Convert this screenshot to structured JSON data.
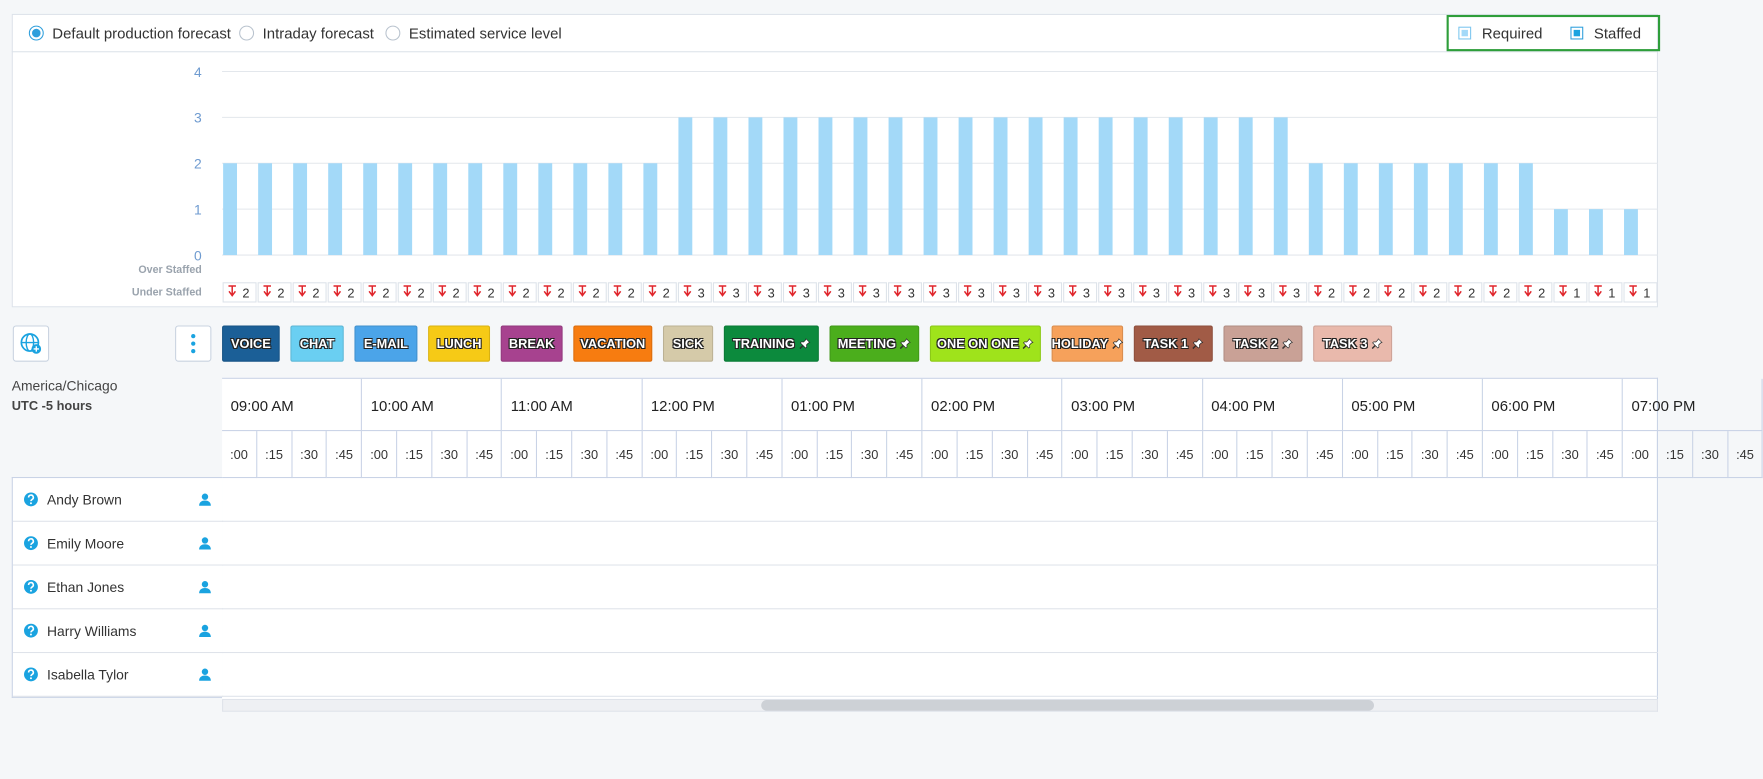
{
  "forecast_options": [
    {
      "label": "Default production forecast",
      "selected": true
    },
    {
      "label": "Intraday forecast",
      "selected": false
    },
    {
      "label": "Estimated service level",
      "selected": false
    }
  ],
  "chart_data": {
    "type": "bar",
    "series": [
      {
        "name": "Required",
        "color": "#a3d9f8",
        "values": [
          2,
          2,
          2,
          2,
          2,
          2,
          2,
          2,
          2,
          2,
          2,
          2,
          2,
          3,
          3,
          3,
          3,
          3,
          3,
          3,
          3,
          3,
          3,
          3,
          3,
          3,
          3,
          3,
          3,
          3,
          3,
          2,
          2,
          2,
          2,
          2,
          2,
          2,
          1,
          1,
          1
        ]
      }
    ],
    "ylim": [
      0,
      4
    ],
    "yticks": [
      0,
      1,
      2,
      3,
      4
    ],
    "grid": true,
    "over_staffed_label": "Over Staffed",
    "under_staffed_label": "Under Staffed",
    "under_staffed": [
      2,
      2,
      2,
      2,
      2,
      2,
      2,
      2,
      2,
      2,
      2,
      2,
      2,
      3,
      3,
      3,
      3,
      3,
      3,
      3,
      3,
      3,
      3,
      3,
      3,
      3,
      3,
      3,
      3,
      3,
      3,
      2,
      2,
      2,
      2,
      2,
      2,
      2,
      1,
      1,
      1
    ]
  },
  "staffed_label": "Staffed",
  "staffed_checked": true,
  "activities": [
    {
      "label": "VOICE",
      "color": "#1b5f97",
      "pinned": false
    },
    {
      "label": "CHAT",
      "color": "#6acff2",
      "pinned": false
    },
    {
      "label": "E-MAIL",
      "color": "#4ba4e9",
      "pinned": false
    },
    {
      "label": "LUNCH",
      "color": "#f6ca16",
      "pinned": false
    },
    {
      "label": "BREAK",
      "color": "#a7428f",
      "pinned": false
    },
    {
      "label": "VACATION",
      "color": "#f77c10",
      "pinned": false
    },
    {
      "label": "SICK",
      "color": "#d5caa9",
      "pinned": false
    },
    {
      "label": "TRAINING",
      "color": "#0c8a3d",
      "pinned": true
    },
    {
      "label": "MEETING",
      "color": "#4bae1c",
      "pinned": true
    },
    {
      "label": "ONE ON ONE",
      "color": "#9fe31b",
      "pinned": true
    },
    {
      "label": "HOLIDAY",
      "color": "#f6a15b",
      "pinned": true
    },
    {
      "label": "TASK 1",
      "color": "#a15b46",
      "pinned": true
    },
    {
      "label": "TASK 2",
      "color": "#c9a196",
      "pinned": true
    },
    {
      "label": "TASK 3",
      "color": "#e9b9ac",
      "pinned": true
    }
  ],
  "timezone": {
    "name": "America/Chicago",
    "offset": "UTC -5 hours"
  },
  "hours": [
    "09:00 AM",
    "10:00 AM",
    "11:00 AM",
    "12:00 PM",
    "01:00 PM",
    "02:00 PM",
    "03:00 PM",
    "04:00 PM",
    "05:00 PM",
    "06:00 PM",
    "07:00 PM"
  ],
  "minute_labels": [
    ":00",
    ":15",
    ":30",
    ":45"
  ],
  "agents": [
    "Andy Brown",
    "Emily Moore",
    "Ethan Jones",
    "Harry Williams",
    "Isabella Tylor"
  ]
}
